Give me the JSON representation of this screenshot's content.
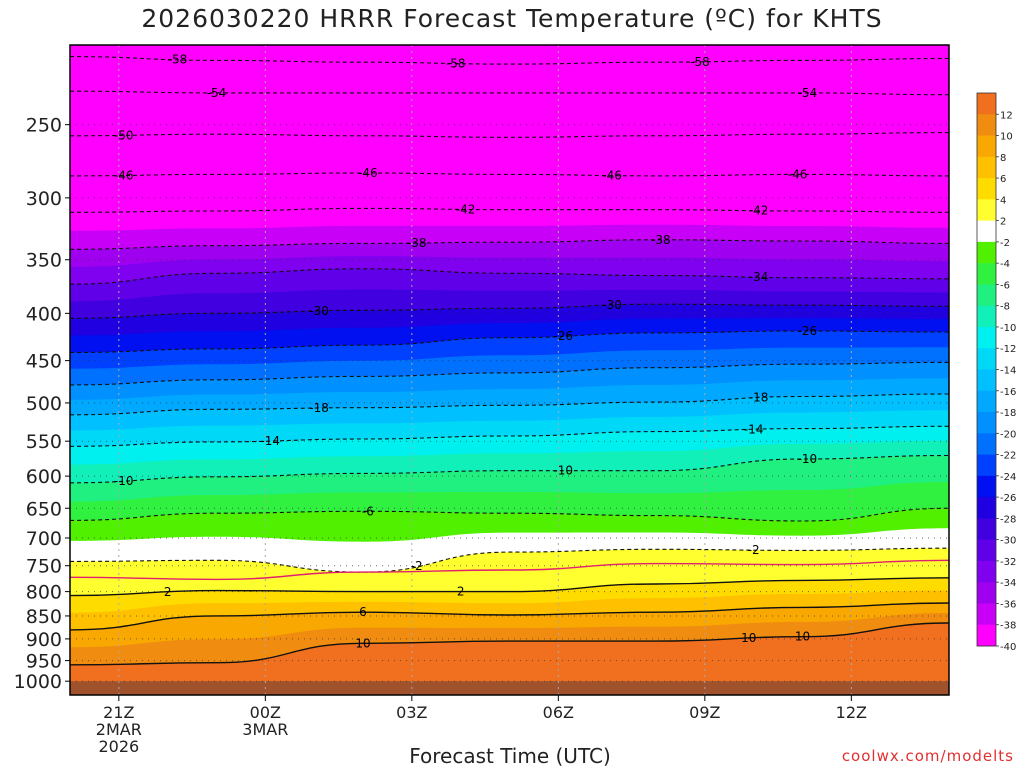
{
  "title": "2026030220 HRRR Forecast Temperature (ºC) for KHTS",
  "x_axis_title": "Forecast Time (UTC)",
  "credit": "coolwx.com/modelts",
  "chart_data": {
    "type": "heatmap",
    "title": "2026030220 HRRR Forecast Temperature (ºC) for KHTS",
    "xlabel": "Forecast Time (UTC)",
    "ylabel": "",
    "x_range_hours": [
      20,
      38
    ],
    "y_scale": "log",
    "y_range_hpa": [
      1035,
      205
    ],
    "x_ticks": [
      {
        "hour": 21,
        "lines": [
          "21Z",
          "2MAR",
          "2026"
        ]
      },
      {
        "hour": 24,
        "lines": [
          "00Z",
          "3MAR"
        ]
      },
      {
        "hour": 27,
        "lines": [
          "03Z"
        ]
      },
      {
        "hour": 30,
        "lines": [
          "06Z"
        ]
      },
      {
        "hour": 33,
        "lines": [
          "09Z"
        ]
      },
      {
        "hour": 36,
        "lines": [
          "12Z"
        ]
      }
    ],
    "y_ticks": [
      250,
      300,
      350,
      400,
      450,
      500,
      550,
      600,
      650,
      700,
      750,
      800,
      850,
      900,
      950,
      1000
    ],
    "colorbar": {
      "levels": [
        -40,
        -38,
        -36,
        -34,
        -32,
        -30,
        -28,
        -26,
        -24,
        -22,
        -20,
        -18,
        -16,
        -14,
        -12,
        -10,
        -8,
        -6,
        -4,
        -2,
        2,
        4,
        6,
        8,
        10,
        12
      ],
      "labels": [
        "12",
        "10",
        "8",
        "6",
        "4",
        "2",
        "-2",
        "-4",
        "-6",
        "-8",
        "-10",
        "-12",
        "-14",
        "-16",
        "-18",
        "-20",
        "-22",
        "-24",
        "-26",
        "-28",
        "-30",
        "-32",
        "-34",
        "-36",
        "-38",
        "-40"
      ],
      "colors_top_to_bottom": [
        "#f07020",
        "#f08c10",
        "#f8a800",
        "#ffc000",
        "#ffdc00",
        "#ffff30",
        "#ffffff",
        "#50f000",
        "#30f040",
        "#20f080",
        "#10f0b8",
        "#00f0f0",
        "#00d8f8",
        "#00c0ff",
        "#00a8ff",
        "#0090ff",
        "#0070ff",
        "#0040ff",
        "#0010f0",
        "#2000e0",
        "#4000e0",
        "#6000e8",
        "#8000f0",
        "#a000f0",
        "#c800f8",
        "#ff00ff"
      ]
    },
    "ground_pressure_hpa": 1000,
    "series": [
      {
        "value": -58,
        "pressure_hpa": [
          211,
          213,
          214,
          215,
          214,
          213,
          212
        ]
      },
      {
        "value": -54,
        "pressure_hpa": [
          230,
          231,
          231,
          231,
          231,
          231,
          232
        ]
      },
      {
        "value": -50,
        "pressure_hpa": [
          257,
          256,
          257,
          258,
          257,
          256,
          255
        ]
      },
      {
        "value": -46,
        "pressure_hpa": [
          284,
          283,
          282,
          283,
          284,
          283,
          284
        ]
      },
      {
        "value": -42,
        "pressure_hpa": [
          311,
          310,
          308,
          309,
          309,
          310,
          311
        ]
      },
      {
        "value": -38,
        "pressure_hpa": [
          341,
          338,
          336,
          335,
          333,
          334,
          336
        ]
      },
      {
        "value": -34,
        "pressure_hpa": [
          372,
          362,
          358,
          362,
          364,
          366,
          367
        ]
      },
      {
        "value": -30,
        "pressure_hpa": [
          405,
          400,
          397,
          395,
          391,
          392,
          393
        ]
      },
      {
        "value": -26,
        "pressure_hpa": [
          441,
          437,
          433,
          425,
          420,
          418,
          419
        ]
      },
      {
        "value": -22,
        "pressure_hpa": [
          478,
          472,
          468,
          464,
          458,
          454,
          452
        ]
      },
      {
        "value": -18,
        "pressure_hpa": [
          515,
          508,
          506,
          503,
          499,
          492,
          489
        ]
      },
      {
        "value": -14,
        "pressure_hpa": [
          557,
          551,
          547,
          543,
          537,
          533,
          530
        ]
      },
      {
        "value": -10,
        "pressure_hpa": [
          610,
          601,
          596,
          592,
          592,
          575,
          570
        ]
      },
      {
        "value": -6,
        "pressure_hpa": [
          670,
          658,
          655,
          658,
          662,
          671,
          650
        ]
      },
      {
        "value": -2,
        "pressure_hpa": [
          742,
          740,
          762,
          725,
          720,
          722,
          718
        ]
      },
      {
        "value": 0,
        "pressure_hpa": [
          772,
          776,
          762,
          758,
          746,
          748,
          740
        ]
      },
      {
        "value": 2,
        "pressure_hpa": [
          808,
          798,
          800,
          800,
          785,
          778,
          773
        ]
      },
      {
        "value": 6,
        "pressure_hpa": [
          880,
          850,
          842,
          848,
          842,
          832,
          823
        ]
      },
      {
        "value": 10,
        "pressure_hpa": [
          960,
          955,
          910,
          905,
          905,
          895,
          865
        ]
      }
    ],
    "contour_label_hours": {
      "-58": [
        22.2,
        27.9,
        32.9
      ],
      "-54": [
        23.0,
        35.1
      ],
      "-50": [
        21.1
      ],
      "-46": [
        21.1,
        26.1,
        31.1,
        34.9
      ],
      "-42": [
        28.1,
        34.1
      ],
      "-38": [
        27.1,
        32.1
      ],
      "-34": [
        34.1
      ],
      "-30": [
        25.1,
        31.1
      ],
      "-26": [
        30.1,
        35.1
      ],
      "-18": [
        25.1,
        34.1
      ],
      "-14": [
        24.1,
        34.0
      ],
      "-10": [
        21.1,
        30.1,
        35.1
      ],
      "-6": [
        26.1
      ],
      "-2": [
        27.1,
        34.0
      ],
      "2": [
        22.0,
        28.0
      ],
      "6": [
        26.0
      ],
      "10": [
        26.0,
        33.9,
        35.0
      ]
    }
  }
}
